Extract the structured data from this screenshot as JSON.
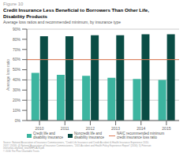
{
  "chart_data": {
    "type": "bar",
    "title": "Credit Insurance Less Beneficial to Borrowers Than Other Life,\nDisability Products",
    "subtitle": "Average loss ratios and recommended minimum, by insurance type",
    "annotations": [
      "Figure 10",
      "Source: National Association of Insurance Commissioners, \"Credit Life Insurance and Credit Accident & Health Insurance Experience 2010-\n2015\" (2016); 4) National Association of Insurance Commissioners, \"2015 Accident and Health Policy Experience Report\" (2016); 5) Peterson\ninterviews.org/land_new/NHPUA-N.pdf.\n© 2016 The Pew Charitable Trusts"
    ],
    "ylabel": "Average loss ratio",
    "categories": [
      "2010",
      "2011",
      "2012",
      "2013",
      "2014",
      "2015"
    ],
    "series": [
      {
        "name": "Credit life and\ndisability insurance",
        "color": "#3db5a0",
        "values": [
          0.47,
          0.45,
          0.44,
          0.42,
          0.41,
          0.4
        ]
      },
      {
        "name": "Noncredit life and\ndisability insurance",
        "color": "#0a4d45",
        "values": [
          0.83,
          0.83,
          0.84,
          0.84,
          0.85,
          0.85
        ]
      }
    ],
    "reference_line": {
      "name": "NAIC recommended minimum\ncredit insurance loss ratio",
      "value": 0.6,
      "color": "#e07b54"
    },
    "ylim": [
      0,
      0.9
    ],
    "yticks": [
      {
        "value": 0,
        "label": "0%"
      },
      {
        "value": 0.1,
        "label": "10%"
      },
      {
        "value": 0.2,
        "label": "20%"
      },
      {
        "value": 0.3,
        "label": "30%"
      },
      {
        "value": 0.4,
        "label": "40%"
      },
      {
        "value": 0.5,
        "label": "50%"
      },
      {
        "value": 0.6,
        "label": "60%"
      },
      {
        "value": 0.7,
        "label": "70%"
      },
      {
        "value": 0.8,
        "label": "80%"
      },
      {
        "value": 0.9,
        "label": "90%"
      }
    ],
    "grid": true,
    "legend": "bottom"
  }
}
